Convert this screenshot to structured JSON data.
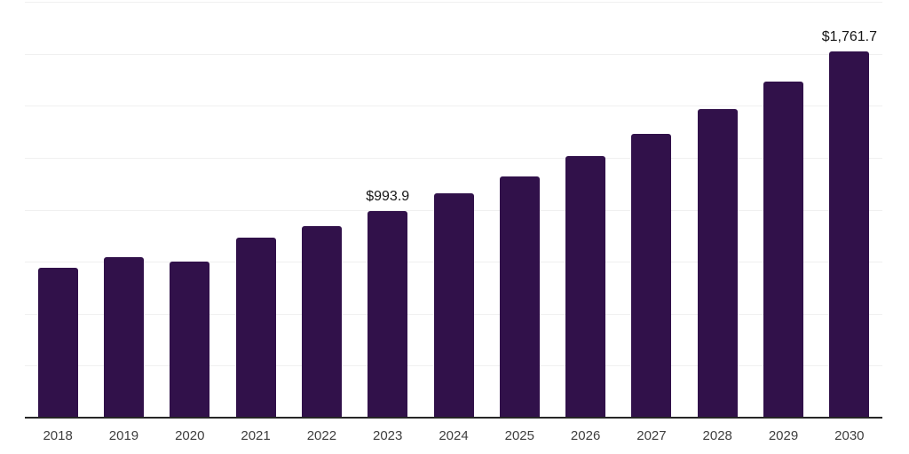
{
  "chart_data": {
    "type": "bar",
    "title": "",
    "xlabel": "",
    "ylabel": "",
    "categories": [
      "2018",
      "2019",
      "2020",
      "2021",
      "2022",
      "2023",
      "2024",
      "2025",
      "2026",
      "2027",
      "2028",
      "2029",
      "2030"
    ],
    "values": [
      720,
      770,
      749,
      864,
      923,
      993.9,
      1081,
      1162,
      1260,
      1366,
      1485,
      1617,
      1761.7
    ],
    "value_labels": [
      {
        "category": "2023",
        "text": "$993.9"
      },
      {
        "category": "2030",
        "text": "$1,761.7"
      }
    ],
    "ylim": [
      0,
      2000
    ],
    "gridline_interval": 250,
    "grid": true,
    "legend": false,
    "y_axis_labels_visible": false,
    "colors": {
      "bar": "#31114A",
      "grid": "#F0F0F0",
      "axis_line": "#262626",
      "value_label": "#161616",
      "tick_label": "#3E3E3E",
      "background": "#FFFFFF"
    }
  }
}
